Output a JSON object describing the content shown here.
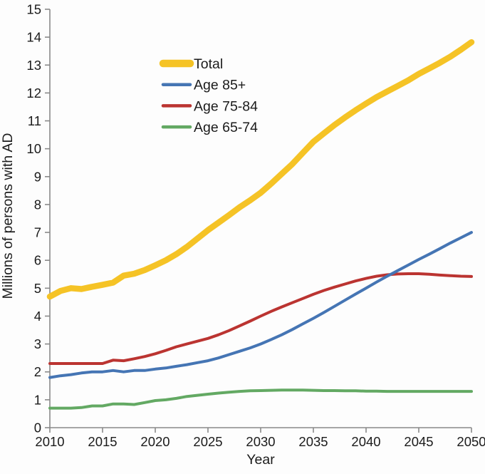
{
  "figure": {
    "background": "#fdfdfd",
    "axis_color": "#8a8a8a",
    "text_color": "#1b1b1b"
  },
  "chart_data": {
    "type": "line",
    "title": "",
    "xlabel": "Year",
    "ylabel": "Millions of persons with AD",
    "xlim": [
      2010,
      2050
    ],
    "ylim": [
      0,
      15
    ],
    "x_ticks": [
      2010,
      2015,
      2020,
      2025,
      2030,
      2035,
      2040,
      2045,
      2050
    ],
    "y_ticks": [
      0,
      1,
      2,
      3,
      4,
      5,
      6,
      7,
      8,
      9,
      10,
      11,
      12,
      13,
      14,
      15
    ],
    "grid": false,
    "legend_position": "upper-left-inside",
    "x": [
      2010,
      2011,
      2012,
      2013,
      2014,
      2015,
      2016,
      2017,
      2018,
      2019,
      2020,
      2021,
      2022,
      2023,
      2024,
      2025,
      2026,
      2027,
      2028,
      2029,
      2030,
      2031,
      2032,
      2033,
      2034,
      2035,
      2036,
      2037,
      2038,
      2039,
      2040,
      2041,
      2042,
      2043,
      2044,
      2045,
      2046,
      2047,
      2048,
      2049,
      2050
    ],
    "series": [
      {
        "name": "Total",
        "color": "#F5C326",
        "line_width": 8.5,
        "z": 1,
        "values": [
          4.7,
          4.9,
          5.0,
          4.97,
          5.05,
          5.12,
          5.2,
          5.45,
          5.52,
          5.65,
          5.82,
          6.0,
          6.22,
          6.48,
          6.78,
          7.08,
          7.35,
          7.62,
          7.9,
          8.15,
          8.42,
          8.75,
          9.1,
          9.45,
          9.85,
          10.25,
          10.55,
          10.85,
          11.12,
          11.38,
          11.62,
          11.85,
          12.05,
          12.25,
          12.45,
          12.68,
          12.88,
          13.08,
          13.3,
          13.55,
          13.82
        ]
      },
      {
        "name": "Age 85+",
        "color": "#4575B4",
        "line_width": 4,
        "z": 4,
        "values": [
          1.8,
          1.86,
          1.9,
          1.96,
          2.0,
          2.0,
          2.05,
          2.0,
          2.05,
          2.05,
          2.1,
          2.14,
          2.2,
          2.26,
          2.33,
          2.4,
          2.5,
          2.62,
          2.74,
          2.86,
          3.0,
          3.16,
          3.33,
          3.52,
          3.72,
          3.92,
          4.13,
          4.35,
          4.57,
          4.79,
          5.0,
          5.22,
          5.43,
          5.63,
          5.83,
          6.03,
          6.22,
          6.42,
          6.62,
          6.81,
          7.0
        ]
      },
      {
        "name": "Age 75-84",
        "color": "#BB3431",
        "line_width": 4,
        "z": 2,
        "values": [
          2.3,
          2.3,
          2.3,
          2.3,
          2.3,
          2.3,
          2.42,
          2.4,
          2.47,
          2.55,
          2.65,
          2.77,
          2.9,
          3.0,
          3.1,
          3.2,
          3.33,
          3.48,
          3.65,
          3.82,
          4.0,
          4.17,
          4.33,
          4.48,
          4.63,
          4.78,
          4.92,
          5.04,
          5.15,
          5.26,
          5.35,
          5.43,
          5.48,
          5.51,
          5.52,
          5.52,
          5.5,
          5.47,
          5.45,
          5.43,
          5.42
        ]
      },
      {
        "name": "Age 65-74",
        "color": "#63A963",
        "line_width": 4,
        "z": 3,
        "values": [
          0.7,
          0.7,
          0.7,
          0.72,
          0.78,
          0.78,
          0.85,
          0.85,
          0.83,
          0.9,
          0.97,
          1.0,
          1.05,
          1.12,
          1.16,
          1.2,
          1.24,
          1.27,
          1.3,
          1.32,
          1.33,
          1.34,
          1.35,
          1.35,
          1.35,
          1.34,
          1.33,
          1.33,
          1.32,
          1.32,
          1.31,
          1.31,
          1.3,
          1.3,
          1.3,
          1.3,
          1.3,
          1.3,
          1.3,
          1.3,
          1.3
        ]
      }
    ]
  }
}
